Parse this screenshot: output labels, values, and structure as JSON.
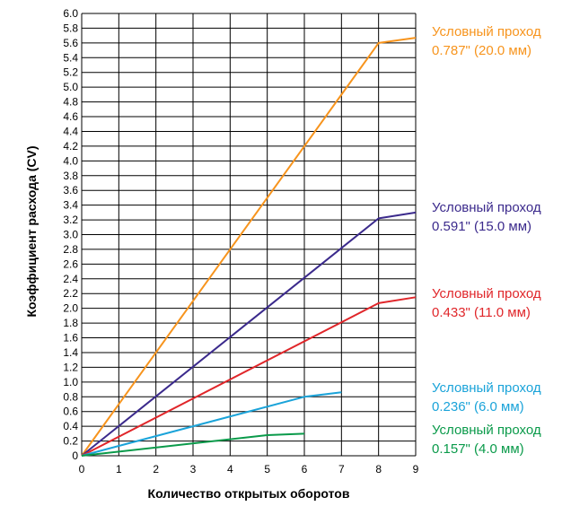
{
  "chart_data": {
    "type": "line",
    "title": "",
    "xlabel": "Количество открытых оборотов",
    "ylabel": "Коэффициент расхода (CV)",
    "xlim": [
      0,
      9
    ],
    "ylim": [
      0,
      6.0
    ],
    "x_ticks": [
      "0",
      "1",
      "2",
      "3",
      "4",
      "5",
      "6",
      "7",
      "8",
      "9"
    ],
    "y_ticks": [
      "0",
      "0.2",
      "0.4",
      "0.6",
      "0.8",
      "1.0",
      "1.2",
      "1.4",
      "1.6",
      "1.8",
      "2.0",
      "2.2",
      "2.4",
      "2.6",
      "2.8",
      "3.0",
      "3.2",
      "3.4",
      "3.6",
      "3.8",
      "4.0",
      "4.2",
      "4.4",
      "4.6",
      "4.8",
      "5.0",
      "5.2",
      "5.4",
      "5.6",
      "5.8",
      "6.0"
    ],
    "grid": true,
    "legend_placement": "right",
    "series": [
      {
        "label_line1": "Условный проход",
        "label_line2": "0.787\" (20.0 мм)",
        "color": "#f7941d",
        "points": [
          [
            0,
            0
          ],
          [
            8,
            5.6
          ],
          [
            9,
            5.67
          ]
        ]
      },
      {
        "label_line1": "Условный проход",
        "label_line2": "0.591\" (15.0 мм)",
        "color": "#3b2a8c",
        "points": [
          [
            0,
            0
          ],
          [
            8,
            3.22
          ],
          [
            9,
            3.3
          ]
        ]
      },
      {
        "label_line1": "Условный проход",
        "label_line2": " 0.433\" (11.0 мм)",
        "color": "#e0262a",
        "points": [
          [
            0,
            0
          ],
          [
            8,
            2.07
          ],
          [
            9,
            2.15
          ]
        ]
      },
      {
        "label_line1": "Условный проход",
        "label_line2": "0.236\" (6.0 мм)",
        "color": "#1aa3d9",
        "points": [
          [
            0,
            0
          ],
          [
            6,
            0.8
          ],
          [
            7,
            0.86
          ]
        ]
      },
      {
        "label_line1": "Условный проход",
        "label_line2": "0.157\" (4.0 мм)",
        "color": "#0a9a4a",
        "points": [
          [
            0,
            0
          ],
          [
            5,
            0.28
          ],
          [
            6,
            0.3
          ]
        ]
      }
    ]
  }
}
